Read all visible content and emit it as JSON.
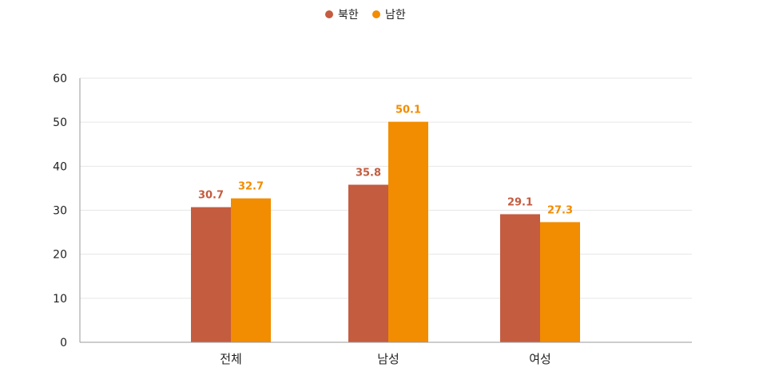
{
  "chart_data": {
    "type": "bar",
    "categories": [
      "전체",
      "남성",
      "여성"
    ],
    "series": [
      {
        "name": "북한",
        "color": "#C45C40",
        "values": [
          30.7,
          35.8,
          29.1
        ]
      },
      {
        "name": "남한",
        "color": "#F28C00",
        "values": [
          32.7,
          50.1,
          27.3
        ]
      }
    ],
    "ylim": [
      0,
      60
    ],
    "yticks": [
      0,
      10,
      20,
      30,
      40,
      50,
      60
    ],
    "grid": true,
    "legend_position": "top-center",
    "data_labels": true
  }
}
